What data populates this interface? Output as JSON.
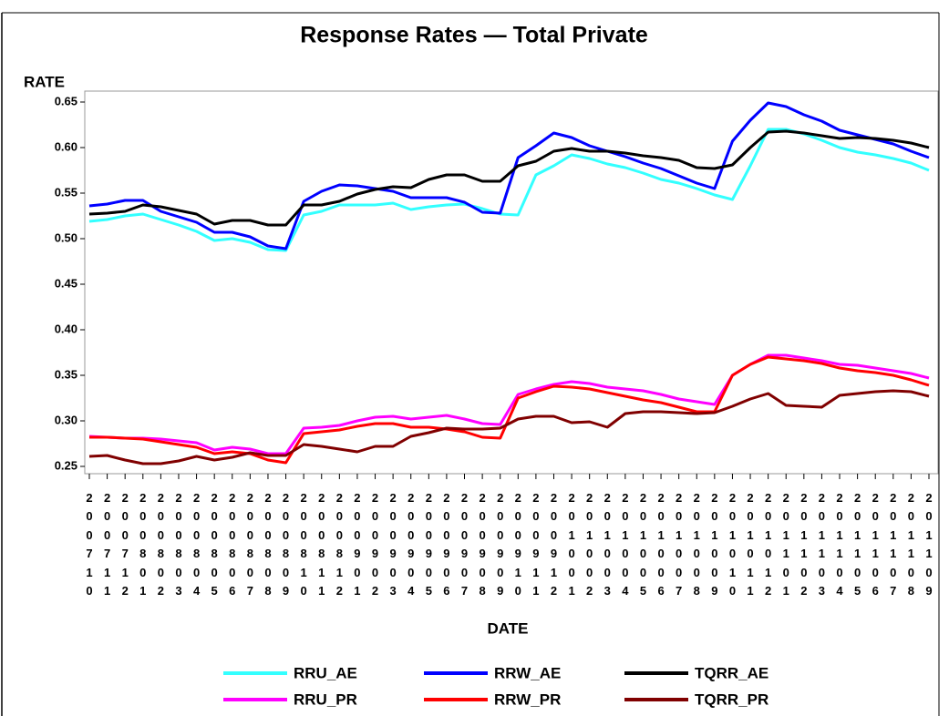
{
  "chart_data": {
    "type": "line",
    "title": "Response Rates — Total Private",
    "y_label": "RATE",
    "x_label": "DATE",
    "categories": [
      "200710",
      "200711",
      "200712",
      "200801",
      "200802",
      "200803",
      "200804",
      "200805",
      "200806",
      "200807",
      "200808",
      "200809",
      "200810",
      "200811",
      "200812",
      "200901",
      "200902",
      "200903",
      "200904",
      "200905",
      "200906",
      "200907",
      "200908",
      "200909",
      "200910",
      "200911",
      "200912",
      "201001",
      "201002",
      "201003",
      "201004",
      "201005",
      "201006",
      "201007",
      "201008",
      "201009",
      "201010",
      "201011",
      "201012",
      "201101",
      "201102",
      "201103",
      "201104",
      "201105",
      "201106",
      "201107",
      "201108",
      "201109"
    ],
    "ylim": [
      0.25,
      0.65
    ],
    "yticks": [
      0.25,
      {
        "value": 0.3,
        "label": "0.30"
      },
      0.35,
      {
        "value": 0.4,
        "label": "0.40"
      },
      0.45,
      {
        "value": 0.5,
        "label": "0.50"
      },
      0.55,
      {
        "value": 0.6,
        "label": "0.60"
      },
      0.65
    ],
    "grid": false,
    "legend": "bottom",
    "series": [
      {
        "name": "RRU_AE",
        "color": "#33ffff",
        "values": [
          0.519,
          0.521,
          0.525,
          0.527,
          0.521,
          0.515,
          0.508,
          0.498,
          0.5,
          0.496,
          0.488,
          0.487,
          0.526,
          0.53,
          0.537,
          0.537,
          0.537,
          0.539,
          0.532,
          0.535,
          0.537,
          0.538,
          0.533,
          0.527,
          0.526,
          0.57,
          0.58,
          0.592,
          0.588,
          0.582,
          0.578,
          0.572,
          0.565,
          0.561,
          0.555,
          0.548,
          0.543,
          0.58,
          0.62,
          0.62,
          0.615,
          0.608,
          0.6,
          0.595,
          0.592,
          0.588,
          0.583,
          0.575
        ]
      },
      {
        "name": "RRW_AE",
        "color": "#0000ff",
        "values": [
          0.536,
          0.538,
          0.542,
          0.542,
          0.53,
          0.524,
          0.518,
          0.507,
          0.507,
          0.502,
          0.492,
          0.489,
          0.541,
          0.552,
          0.559,
          0.558,
          0.555,
          0.552,
          0.545,
          0.545,
          0.545,
          0.54,
          0.529,
          0.528,
          0.589,
          0.602,
          0.616,
          0.611,
          0.602,
          0.596,
          0.59,
          0.583,
          0.577,
          0.569,
          0.561,
          0.555,
          0.607,
          0.63,
          0.649,
          0.645,
          0.636,
          0.629,
          0.619,
          0.614,
          0.609,
          0.604,
          0.596,
          0.589
        ]
      },
      {
        "name": "TQRR_AE",
        "color": "#000000",
        "values": [
          0.527,
          0.528,
          0.53,
          0.537,
          0.535,
          0.531,
          0.527,
          0.516,
          0.52,
          0.52,
          0.515,
          0.515,
          0.537,
          0.537,
          0.541,
          0.549,
          0.554,
          0.557,
          0.556,
          0.565,
          0.57,
          0.57,
          0.563,
          0.563,
          0.58,
          0.585,
          0.596,
          0.599,
          0.596,
          0.596,
          0.594,
          0.591,
          0.589,
          0.586,
          0.578,
          0.577,
          0.581,
          0.6,
          0.617,
          0.618,
          0.616,
          0.613,
          0.61,
          0.611,
          0.61,
          0.608,
          0.605,
          0.6
        ]
      },
      {
        "name": "RRU_PR",
        "color": "#ff00ff",
        "values": [
          0.283,
          0.282,
          0.281,
          0.281,
          0.28,
          0.278,
          0.276,
          0.268,
          0.271,
          0.269,
          0.264,
          0.264,
          0.292,
          0.293,
          0.295,
          0.3,
          0.304,
          0.305,
          0.302,
          0.304,
          0.306,
          0.302,
          0.297,
          0.296,
          0.329,
          0.335,
          0.34,
          0.343,
          0.341,
          0.337,
          0.335,
          0.333,
          0.329,
          0.324,
          0.321,
          0.318,
          0.35,
          0.362,
          0.372,
          0.372,
          0.369,
          0.366,
          0.362,
          0.361,
          0.358,
          0.355,
          0.352,
          0.347
        ]
      },
      {
        "name": "RRW_PR",
        "color": "#ff0000",
        "values": [
          0.282,
          0.282,
          0.281,
          0.28,
          0.277,
          0.274,
          0.271,
          0.264,
          0.266,
          0.264,
          0.257,
          0.254,
          0.286,
          0.288,
          0.29,
          0.294,
          0.297,
          0.297,
          0.293,
          0.293,
          0.291,
          0.288,
          0.282,
          0.281,
          0.325,
          0.332,
          0.338,
          0.337,
          0.335,
          0.331,
          0.327,
          0.323,
          0.32,
          0.315,
          0.31,
          0.31,
          0.35,
          0.362,
          0.37,
          0.368,
          0.366,
          0.363,
          0.358,
          0.355,
          0.353,
          0.35,
          0.345,
          0.339
        ]
      },
      {
        "name": "TQRR_PR",
        "color": "#800000",
        "values": [
          0.261,
          0.262,
          0.257,
          0.253,
          0.253,
          0.256,
          0.261,
          0.257,
          0.26,
          0.265,
          0.262,
          0.262,
          0.274,
          0.272,
          0.269,
          0.266,
          0.272,
          0.272,
          0.283,
          0.287,
          0.292,
          0.291,
          0.291,
          0.292,
          0.302,
          0.305,
          0.305,
          0.298,
          0.299,
          0.293,
          0.308,
          0.31,
          0.31,
          0.309,
          0.308,
          0.309,
          0.316,
          0.324,
          0.33,
          0.317,
          0.316,
          0.315,
          0.328,
          0.33,
          0.332,
          0.333,
          0.332,
          0.327
        ]
      }
    ]
  }
}
